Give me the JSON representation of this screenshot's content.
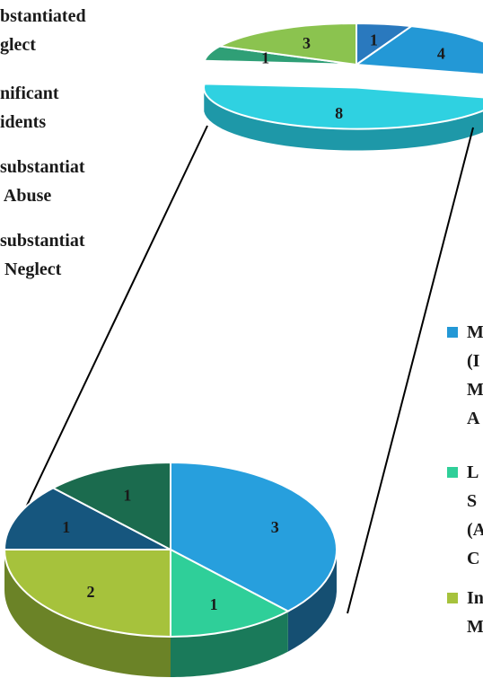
{
  "chart_data": {
    "type": "pie",
    "title": "",
    "main_pie": {
      "values": [
        1,
        4,
        8,
        1,
        3
      ],
      "labels": [
        "1",
        "4",
        "8",
        "1",
        "3"
      ],
      "colors": [
        "#2a79be",
        "#2398d6",
        "#2fd1e1",
        "#2f9f76",
        "#8bc34f"
      ],
      "side_colors": [
        "#1b4f7d",
        "#1a5c82",
        "#1e98a8",
        "#1d6a4f",
        "#5c8a32"
      ],
      "exploded_slice_index": 2
    },
    "sub_pie": {
      "values": [
        3,
        1,
        2,
        1,
        1
      ],
      "labels": [
        "3",
        "1",
        "2",
        "1",
        "1"
      ],
      "colors": [
        "#279fdd",
        "#2fcf99",
        "#a6c23c",
        "#16567e",
        "#1b6b4e"
      ],
      "side_colors": [
        "#154f72",
        "#1a7a5a",
        "#6b8327",
        "#0e3a57",
        "#124a36"
      ]
    },
    "left_legend": [
      {
        "text": "bstantiated\nglect"
      },
      {
        "text": "nificant\nidents"
      },
      {
        "text": "substantiat\n Abuse"
      },
      {
        "text": "substantiat\n Neglect"
      }
    ],
    "right_legend": [
      {
        "text": "M\n(I\nM\nA",
        "color": "#2398d6"
      },
      {
        "text": "L\nS\n(A\nC",
        "color": "#2fcf99"
      },
      {
        "text": "In\nM",
        "color": "#a6c23c"
      }
    ]
  }
}
